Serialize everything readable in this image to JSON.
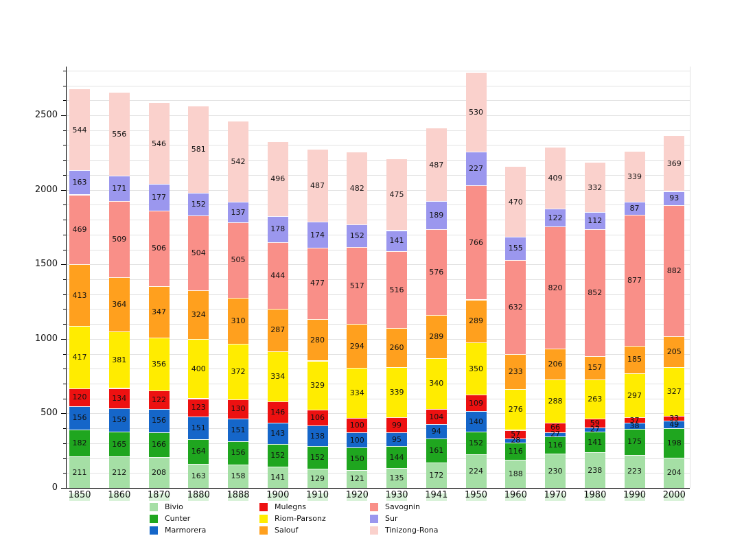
{
  "chart_data": {
    "type": "bar",
    "stacked": true,
    "title": "",
    "xlabel": "",
    "ylabel": "",
    "categories": [
      "1850",
      "1860",
      "1870",
      "1880",
      "1888",
      "1900",
      "1910",
      "1920",
      "1930",
      "1941",
      "1950",
      "1960",
      "1970",
      "1980",
      "1990",
      "2000"
    ],
    "series": [
      {
        "name": "Bivio",
        "color": "#a5dfa5",
        "values": [
          211,
          212,
          208,
          163,
          158,
          141,
          129,
          121,
          135,
          172,
          224,
          188,
          230,
          238,
          223,
          204
        ]
      },
      {
        "name": "Cunter",
        "color": "#1fa61f",
        "values": [
          182,
          165,
          166,
          164,
          156,
          152,
          152,
          150,
          144,
          161,
          152,
          116,
          116,
          141,
          175,
          198
        ]
      },
      {
        "name": "Marmorera",
        "color": "#1566c9",
        "values": [
          156,
          159,
          156,
          151,
          151,
          143,
          138,
          100,
          95,
          94,
          140,
          28,
          27,
          27,
          38,
          49
        ]
      },
      {
        "name": "Mulegns",
        "color": "#ed1111",
        "values": [
          120,
          134,
          122,
          123,
          130,
          146,
          106,
          100,
          99,
          104,
          109,
          57,
          66,
          59,
          37,
          33
        ]
      },
      {
        "name": "Riom-Parsonz",
        "color": "#ffec00",
        "values": [
          417,
          381,
          356,
          400,
          372,
          334,
          329,
          334,
          339,
          340,
          350,
          276,
          288,
          263,
          297,
          327
        ]
      },
      {
        "name": "Salouf",
        "color": "#ffa01e",
        "values": [
          413,
          364,
          347,
          324,
          310,
          287,
          280,
          294,
          260,
          289,
          289,
          233,
          206,
          157,
          185,
          205
        ]
      },
      {
        "name": "Savognin",
        "color": "#f98f88",
        "values": [
          469,
          509,
          506,
          504,
          505,
          444,
          477,
          517,
          516,
          576,
          766,
          632,
          820,
          852,
          877,
          882
        ]
      },
      {
        "name": "Sur",
        "color": "#9b97ee",
        "values": [
          163,
          171,
          177,
          152,
          137,
          178,
          174,
          152,
          141,
          189,
          227,
          155,
          122,
          112,
          87,
          93
        ]
      },
      {
        "name": "Tinizong-Rona",
        "color": "#fad1cc",
        "values": [
          544,
          556,
          546,
          581,
          542,
          496,
          487,
          482,
          475,
          487,
          530,
          470,
          409,
          332,
          339,
          369
        ]
      }
    ],
    "ylim": [
      0,
      2800
    ],
    "ytick_values": [
      0,
      500,
      1000,
      1500,
      2000,
      2500
    ],
    "ytick_labels": [
      "0",
      "500",
      "1000",
      "1500",
      "2000",
      "2500"
    ],
    "minor_grid_step": 100,
    "grid": true,
    "legend_position": "bottom",
    "legend_columns": [
      [
        "Bivio",
        "Cunter",
        "Marmorera"
      ],
      [
        "Mulegns",
        "Riom-Parsonz",
        "Salouf"
      ],
      [
        "Savognin",
        "Sur",
        "Tinizong-Rona"
      ]
    ]
  }
}
